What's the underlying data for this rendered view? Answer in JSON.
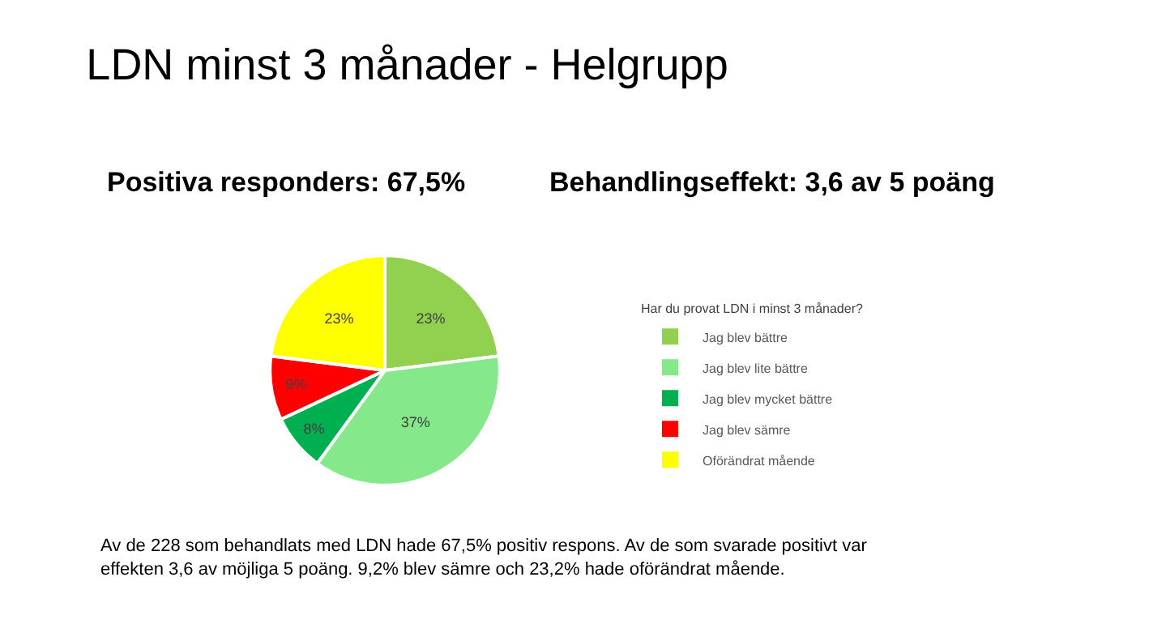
{
  "chart_data": {
    "type": "pie",
    "title": "LDN minst 3 månader - Helgrupp",
    "categories": [
      "Jag blev bättre",
      "Jag blev lite bättre",
      "Jag blev mycket bättre",
      "Jag blev sämre",
      "Oförändrat mående"
    ],
    "values": [
      23,
      37,
      8,
      9,
      23
    ],
    "value_labels": [
      "23%",
      "37%",
      "8%",
      "9%",
      "23%"
    ],
    "colors": [
      "#92d050",
      "#85e88a",
      "#00b050",
      "#ff0000",
      "#ffff00"
    ],
    "legend": "right",
    "legend_title": "Har du provat LDN i minst 3 månader?",
    "annotations": [
      "Positiva responders: 67,5%",
      "Behandlingseffekt: 3,6 av 5 poäng",
      "Av de 228 som behandlats med LDN hade 67,5% positiv respons. Av de som svarade positivt var\neffekten 3,6 av möjliga 5 poäng. 9,2% blev sämre och 23,2% hade oförändrat mående."
    ]
  }
}
